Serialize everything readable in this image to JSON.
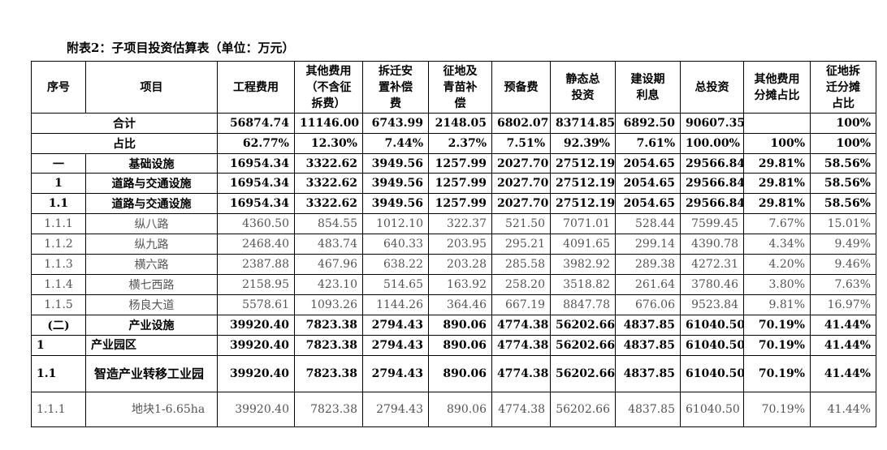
{
  "title": "附表2：子项目投资估算表（单位：万元）",
  "header": [
    [
      "序号"
    ],
    [
      "项目"
    ],
    [
      "工程费用"
    ],
    [
      "其他费用",
      "（不含征",
      "拆费）"
    ],
    [
      "拆迁安",
      "置补偿",
      "费"
    ],
    [
      "征地及",
      "青苗补",
      "偿"
    ],
    [
      "预备费"
    ],
    [
      "静态总",
      "投资"
    ],
    [
      "建设期",
      "利息"
    ],
    [
      "总投资"
    ],
    [
      "其他费用",
      "分摊占比"
    ],
    [
      "征地拆",
      "迁分摊",
      "占比"
    ]
  ],
  "rows": [
    {
      "label": "合计",
      "values": [
        "56874.74",
        "11146.00",
        "6743.99",
        "2148.05",
        "6802.07",
        "83714.85",
        "6892.50",
        "90607.35",
        null,
        "100%"
      ]
    },
    {
      "label": "占比",
      "values": [
        "62.77%",
        "12.30%",
        "7.44%",
        "2.37%",
        "7.51%",
        "92.39%",
        "7.61%",
        "100.00%",
        "100%",
        "100%"
      ]
    },
    {
      "no": "一",
      "item": "基础设施",
      "values": [
        "16954.34",
        "3322.62",
        "3949.56",
        "1257.99",
        "2027.70",
        "27512.19",
        "2054.65",
        "29566.84",
        "29.81%",
        "58.56%"
      ]
    },
    {
      "no": "1",
      "item": "道路与交通设施",
      "values": [
        "16954.34",
        "3322.62",
        "3949.56",
        "1257.99",
        "2027.70",
        "27512.19",
        "2054.65",
        "29566.84",
        "29.81%",
        "58.56%"
      ]
    },
    {
      "no": "1.1",
      "item": "道路与交通设施",
      "values": [
        "16954.34",
        "3322.62",
        "3949.56",
        "1257.99",
        "2027.70",
        "27512.19",
        "2054.65",
        "29566.84",
        "29.81%",
        "58.56%"
      ]
    },
    {
      "no": "1.1.1",
      "item": "纵八路",
      "values": [
        "4360.50",
        "854.55",
        "1012.10",
        "322.37",
        "521.50",
        "7071.01",
        "528.44",
        "7599.45",
        "7.67%",
        "15.01%"
      ]
    },
    {
      "no": "1.1.2",
      "item": "纵九路",
      "values": [
        "2468.40",
        "483.74",
        "640.33",
        "203.95",
        "295.21",
        "4091.65",
        "299.14",
        "4390.78",
        "4.34%",
        "9.49%"
      ]
    },
    {
      "no": "1.1.3",
      "item": "横六路",
      "values": [
        "2387.88",
        "467.96",
        "638.22",
        "203.28",
        "285.58",
        "3982.92",
        "289.38",
        "4272.31",
        "4.20%",
        "9.46%"
      ]
    },
    {
      "no": "1.1.4",
      "item": "横七西路",
      "values": [
        "2158.95",
        "423.10",
        "514.65",
        "163.92",
        "258.20",
        "3518.82",
        "261.64",
        "3780.46",
        "3.80%",
        "7.63%"
      ]
    },
    {
      "no": "1.1.5",
      "item": "杨良大道",
      "values": [
        "5578.61",
        "1093.26",
        "1144.26",
        "364.46",
        "667.19",
        "8847.78",
        "676.06",
        "9523.84",
        "9.81%",
        "16.97%"
      ]
    },
    {
      "no": "(二)",
      "item": "产业设施",
      "values": [
        "39920.40",
        "7823.38",
        "2794.43",
        "890.06",
        "4774.38",
        "56202.66",
        "4837.85",
        "61040.50",
        "70.19%",
        "41.44%"
      ]
    },
    {
      "no": "1",
      "item": "产业园区",
      "values": [
        "39920.40",
        "7823.38",
        "2794.43",
        "890.06",
        "4774.38",
        "56202.66",
        "4837.85",
        "61040.50",
        "70.19%",
        "41.44%"
      ]
    },
    {
      "no": "1.1",
      "item": "智造产业转移工业园",
      "values": [
        "39920.40",
        "7823.38",
        "2794.43",
        "890.06",
        "4774.38",
        "56202.66",
        "4837.85",
        "61040.50",
        "70.19%",
        "41.44%"
      ]
    },
    {
      "no": "1.1.1",
      "item": "地块1-6.65ha",
      "values": [
        "39920.40",
        "7823.38",
        "2794.43",
        "890.06",
        "4774.38",
        "56202.66",
        "4837.85",
        "61040.50",
        "70.19%",
        "41.44%"
      ]
    }
  ]
}
